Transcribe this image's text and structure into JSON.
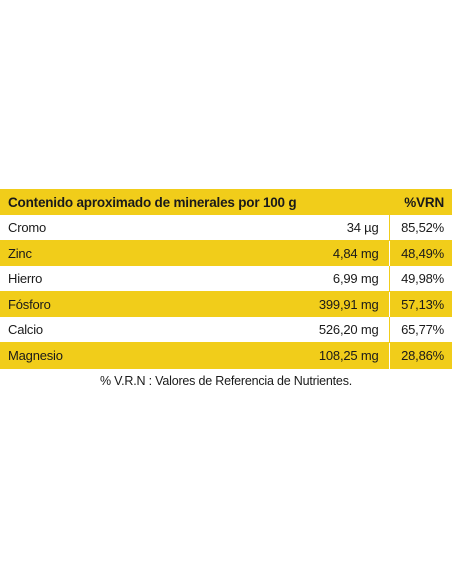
{
  "table": {
    "header": {
      "title": "Contenido aproximado de minerales por 100 g",
      "pct_label": "%VRN"
    },
    "rows": [
      {
        "name": "Cromo",
        "amount": "34 µg",
        "pct": "85,52%"
      },
      {
        "name": "Zinc",
        "amount": "4,84 mg",
        "pct": "48,49%"
      },
      {
        "name": "Hierro",
        "amount": "6,99 mg",
        "pct": "49,98%"
      },
      {
        "name": "Fósforo",
        "amount": "399,91 mg",
        "pct": "57,13%"
      },
      {
        "name": "Calcio",
        "amount": "526,20 mg",
        "pct": "65,77%"
      },
      {
        "name": "Magnesio",
        "amount": "108,25 mg",
        "pct": "28,86%"
      }
    ],
    "footnote": "% V.R.N : Valores de Referencia de Nutrientes."
  },
  "colors": {
    "accent_yellow": "#f1cd1a",
    "text": "#1a1a1a",
    "background": "#ffffff"
  }
}
